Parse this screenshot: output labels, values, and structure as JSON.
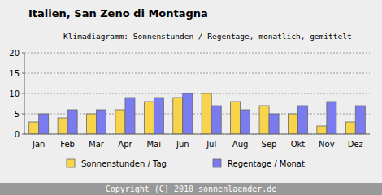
{
  "chart_data": {
    "type": "bar",
    "title": "Italien, San Zeno di Montagna",
    "subtitle": "Klimadiagramm: Sonnenstunden / Regentage, monatlich, gemittelt",
    "annotations": [
      "Copyright (C) 2010 sonnenlaender.de"
    ],
    "categories": [
      "Jan",
      "Feb",
      "Mar",
      "Apr",
      "Mai",
      "Jun",
      "Jul",
      "Aug",
      "Sep",
      "Okt",
      "Nov",
      "Dez"
    ],
    "series": [
      {
        "name": "Sonnenstunden / Tag",
        "color": "#f8d44a",
        "values": [
          3,
          4,
          5,
          6,
          8,
          9,
          10,
          8,
          7,
          5,
          2,
          3
        ]
      },
      {
        "name": "Regentage / Monat",
        "color": "#7b7bf0",
        "values": [
          5,
          6,
          6,
          9,
          9,
          10,
          7,
          6,
          5,
          7,
          8,
          7
        ]
      }
    ],
    "ylim": [
      0,
      20
    ],
    "yticks": [
      0,
      5,
      10,
      15,
      20
    ],
    "grid": true,
    "legend": "bottom"
  }
}
